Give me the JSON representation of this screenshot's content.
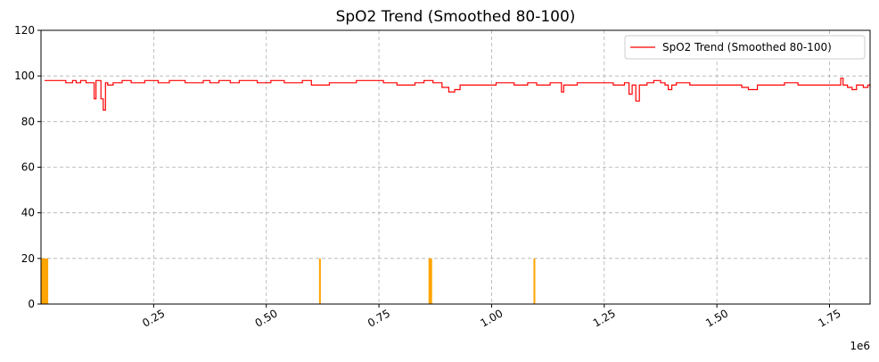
{
  "chart_data": {
    "type": "line",
    "title": "SpO2 Trend (Smoothed 80-100)",
    "xlabel": "",
    "ylabel": "",
    "x_scale_label": "1e6",
    "xlim": [
      0,
      1840000
    ],
    "ylim": [
      0,
      120
    ],
    "x_ticks": [
      0.25,
      0.5,
      0.75,
      1.0,
      1.25,
      1.5,
      1.75
    ],
    "x_tick_labels": [
      "0.25",
      "0.50",
      "0.75",
      "1.00",
      "1.25",
      "1.50",
      "1.75"
    ],
    "y_ticks": [
      0,
      20,
      40,
      60,
      80,
      100,
      120
    ],
    "y_tick_labels": [
      "0",
      "20",
      "40",
      "60",
      "80",
      "100",
      "120"
    ],
    "grid": true,
    "legend": {
      "position": "top-right",
      "entries": [
        "SpO2 Trend (Smoothed 80-100)"
      ]
    },
    "series": [
      {
        "name": "SpO2 Trend (Smoothed 80-100)",
        "color": "#ff0000",
        "step": true,
        "x": [
          8000,
          40000,
          55000,
          70000,
          78000,
          88000,
          100000,
          115000,
          118000,
          122000,
          128000,
          133000,
          138000,
          143000,
          148000,
          160000,
          180000,
          200000,
          230000,
          260000,
          285000,
          320000,
          360000,
          375000,
          395000,
          420000,
          440000,
          480000,
          510000,
          540000,
          580000,
          600000,
          640000,
          700000,
          760000,
          790000,
          830000,
          850000,
          870000,
          890000,
          905000,
          918000,
          930000,
          950000,
          980000,
          1010000,
          1050000,
          1080000,
          1100000,
          1130000,
          1155000,
          1160000,
          1190000,
          1240000,
          1270000,
          1295000,
          1305000,
          1312000,
          1320000,
          1328000,
          1345000,
          1360000,
          1375000,
          1385000,
          1392000,
          1400000,
          1410000,
          1440000,
          1500000,
          1555000,
          1570000,
          1590000,
          1620000,
          1650000,
          1680000,
          1720000,
          1770000,
          1775000,
          1780000,
          1790000,
          1800000,
          1810000,
          1825000,
          1835000,
          1840000
        ],
        "y": [
          98,
          98,
          97,
          98,
          97,
          98,
          97,
          97,
          90,
          98,
          98,
          90,
          85,
          97,
          96,
          97,
          98,
          97,
          98,
          97,
          98,
          97,
          98,
          97,
          98,
          97,
          98,
          97,
          98,
          97,
          98,
          96,
          97,
          98,
          97,
          96,
          97,
          98,
          97,
          95,
          93,
          94,
          96,
          96,
          96,
          97,
          96,
          97,
          96,
          97,
          93,
          96,
          97,
          97,
          96,
          97,
          92,
          96,
          89,
          96,
          97,
          98,
          97,
          96,
          94,
          96,
          97,
          96,
          96,
          95,
          94,
          96,
          96,
          97,
          96,
          96,
          96,
          99,
          96,
          95,
          94,
          96,
          95,
          96,
          95
        ]
      },
      {
        "name": "markers",
        "color": "#ffa500",
        "type": "bar",
        "height": 20,
        "spans": [
          [
            0,
            16000
          ],
          [
            617000,
            621000
          ],
          [
            860000,
            868000
          ],
          [
            1093000,
            1097000
          ]
        ]
      }
    ]
  }
}
